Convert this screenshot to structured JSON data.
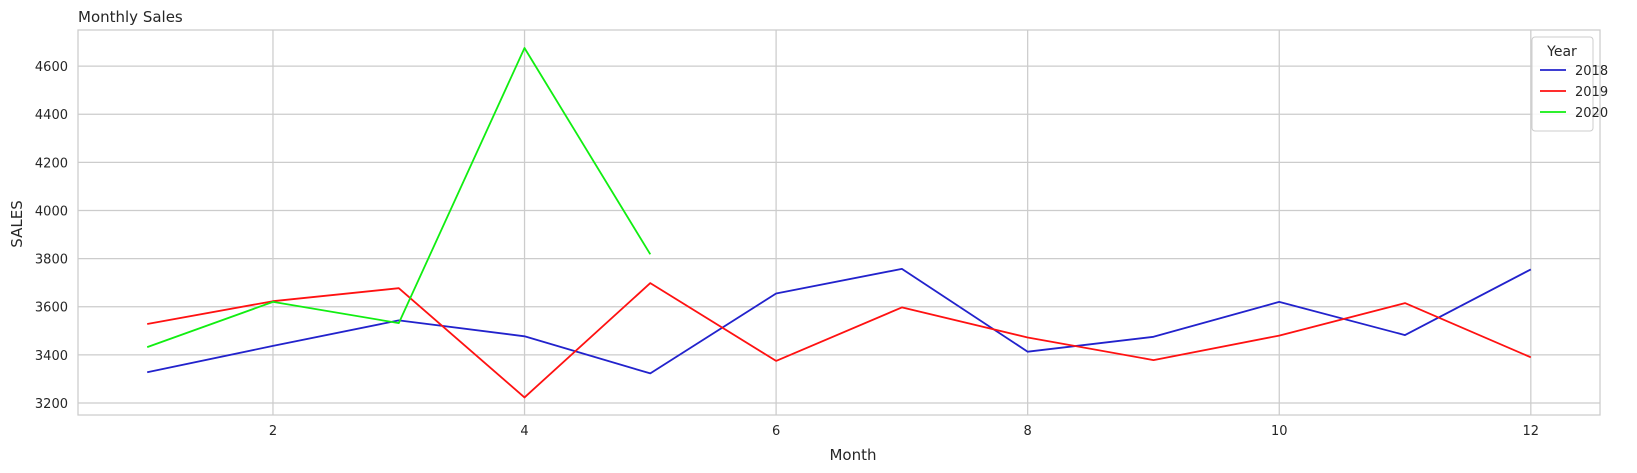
{
  "chart_data": {
    "type": "line",
    "title": "Monthly Sales",
    "xlabel": "Month",
    "ylabel": "SALES",
    "xlim": [
      0.45,
      12.55
    ],
    "ylim": [
      3150,
      4750
    ],
    "xticks": [
      2,
      4,
      6,
      8,
      10,
      12
    ],
    "yticks": [
      3200,
      3400,
      3600,
      3800,
      4000,
      4200,
      4400,
      4600
    ],
    "grid": true,
    "legend": {
      "title": "Year",
      "position": "top-right"
    },
    "series": [
      {
        "name": "2018",
        "color": "#2222cc",
        "x": [
          1,
          2,
          3,
          4,
          5,
          6,
          7,
          8,
          9,
          10,
          11,
          12
        ],
        "y": [
          3328,
          3437,
          3543,
          3477,
          3323,
          3655,
          3757,
          3413,
          3475,
          3620,
          3482,
          3755
        ]
      },
      {
        "name": "2019",
        "color": "#ff1111",
        "x": [
          1,
          2,
          3,
          4,
          5,
          6,
          7,
          8,
          9,
          10,
          11,
          12
        ],
        "y": [
          3528,
          3623,
          3677,
          3223,
          3698,
          3375,
          3597,
          3472,
          3378,
          3480,
          3615,
          3390
        ]
      },
      {
        "name": "2020",
        "color": "#11ee11",
        "x": [
          1,
          2,
          3,
          4,
          5
        ],
        "y": [
          3432,
          3620,
          3532,
          4675,
          3818
        ]
      }
    ]
  }
}
